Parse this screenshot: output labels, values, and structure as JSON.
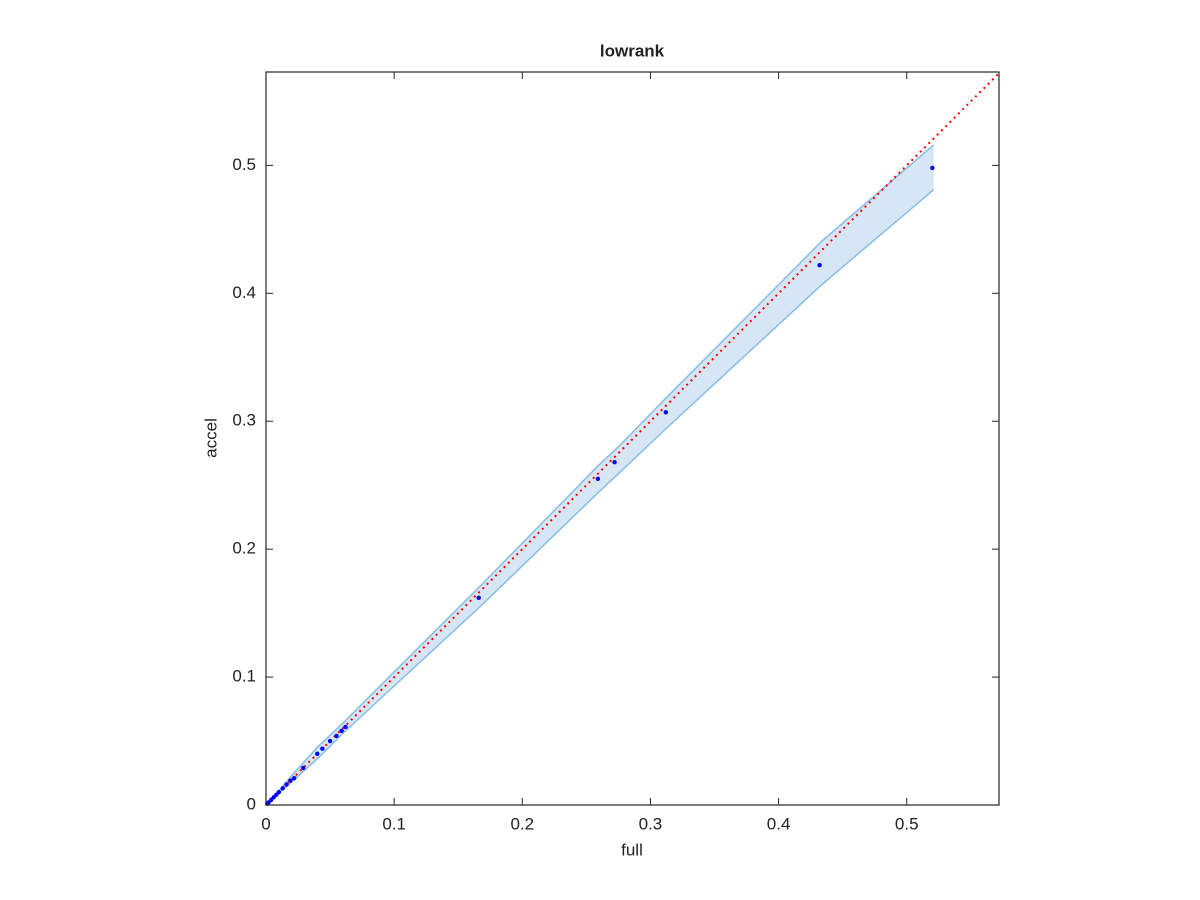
{
  "chart_data": {
    "type": "scatter",
    "title": "lowrank",
    "xlabel": "full",
    "ylabel": "accel",
    "xlim": [
      0,
      0.572
    ],
    "ylim": [
      0,
      0.573
    ],
    "xticks": [
      0,
      0.1,
      0.2,
      0.3,
      0.4,
      0.5
    ],
    "yticks": [
      0,
      0.1,
      0.2,
      0.3,
      0.4,
      0.5
    ],
    "points": {
      "color": "#0000ff",
      "x": [
        0.001,
        0.002,
        0.004,
        0.006,
        0.008,
        0.01,
        0.013,
        0.016,
        0.019,
        0.022,
        0.029,
        0.04,
        0.044,
        0.05,
        0.055,
        0.059,
        0.062,
        0.166,
        0.259,
        0.272,
        0.312,
        0.432,
        0.52
      ],
      "values": [
        0.001,
        0.002,
        0.004,
        0.006,
        0.008,
        0.01,
        0.013,
        0.016,
        0.019,
        0.021,
        0.029,
        0.04,
        0.044,
        0.05,
        0.054,
        0.058,
        0.061,
        0.162,
        0.255,
        0.268,
        0.307,
        0.422,
        0.498
      ]
    },
    "band": {
      "color": "#d6e6f4",
      "edge_color": "#86bde6",
      "x": [
        0,
        0.01,
        0.02,
        0.04,
        0.06,
        0.167,
        0.26,
        0.274,
        0.313,
        0.434,
        0.521
      ],
      "upper": [
        0,
        0.011,
        0.023,
        0.045,
        0.064,
        0.171,
        0.266,
        0.279,
        0.319,
        0.441,
        0.516
      ],
      "lower": [
        0,
        0.009,
        0.018,
        0.036,
        0.056,
        0.155,
        0.245,
        0.258,
        0.295,
        0.407,
        0.481
      ]
    },
    "reference": {
      "color": "#ff0000",
      "style": "dotted",
      "x": [
        0,
        0.572
      ],
      "values": [
        0,
        0.572
      ]
    }
  }
}
